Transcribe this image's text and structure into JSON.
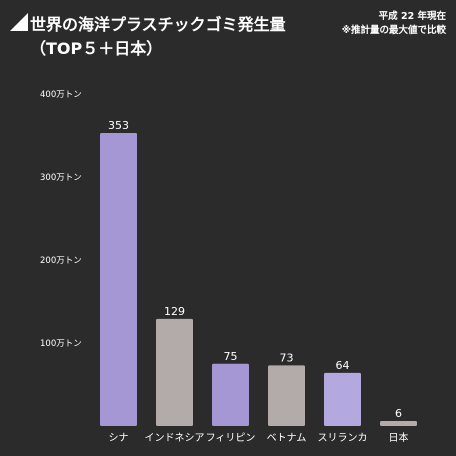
{
  "header": {
    "title_line1": "世界の海洋プラスチックゴミ発生量",
    "title_line2": "（TOP５＋日本）",
    "note_line1": "平成 22 年現在",
    "note_line2": "※推計量の最大値で比較"
  },
  "chart_data": {
    "type": "bar",
    "title": "世界の海洋プラスチックゴミ発生量（TOP５＋日本）",
    "categories": [
      "シナ",
      "インドネシア",
      "フィリピン",
      "ベトナム",
      "スリランカ",
      "日本"
    ],
    "values": [
      353,
      129,
      75,
      73,
      64,
      6
    ],
    "value_labels": [
      "353",
      "129",
      "75",
      "73",
      "64",
      "6"
    ],
    "bar_colors": [
      "#a597d3",
      "#b3aaaa",
      "#a597d3",
      "#b3aaaa",
      "#b3a9df",
      "#b3aaaa"
    ],
    "ylim": [
      0,
      400
    ],
    "yticks": [
      100,
      200,
      300,
      400
    ],
    "ytick_labels": [
      "100万トン",
      "200万トン",
      "300万トン",
      "400万トン"
    ],
    "grid": false,
    "legend": "none"
  }
}
